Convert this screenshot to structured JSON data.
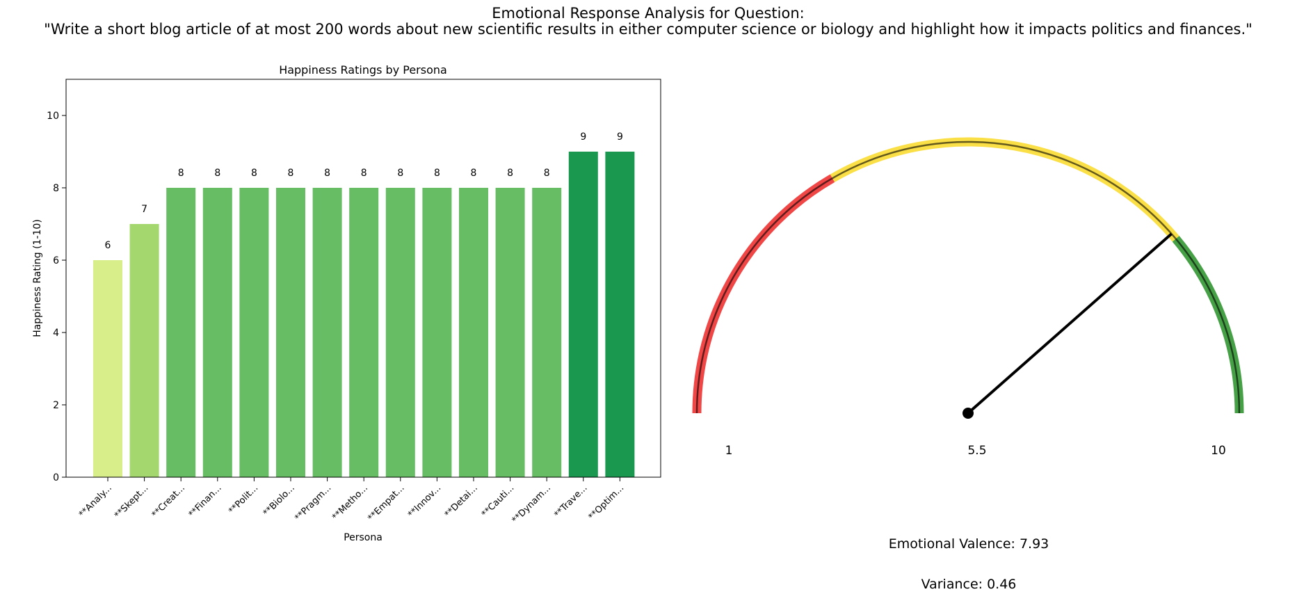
{
  "figure": {
    "title_line1": "Emotional Response Analysis for Question:",
    "title_line2": "\"Write a short blog article of at most 200 words about new scientific results in either computer science or biology and highlight how it impacts politics and finances.\""
  },
  "chart_data": [
    {
      "type": "bar",
      "title": "Happiness Ratings by Persona",
      "xlabel": "Persona",
      "ylabel": "Happiness Rating (1-10)",
      "ylim": [
        0,
        11
      ],
      "yticks": [
        0,
        2,
        4,
        6,
        8,
        10
      ],
      "grid": false,
      "categories": [
        "**Analy...",
        "**Skept...",
        "**Creat...",
        "**Finan...",
        "**Polit...",
        "**Biolo...",
        "**Pragm...",
        "**Metho...",
        "**Empat...",
        "**Innov...",
        "**Detai...",
        "**Cauti...",
        "**Dynam...",
        "**Trave...",
        "**Optim..."
      ],
      "values": [
        6,
        7,
        8,
        8,
        8,
        8,
        8,
        8,
        8,
        8,
        8,
        8,
        8,
        9,
        9
      ],
      "colors": [
        "#d8ee8a",
        "#a4d86e",
        "#66bd63",
        "#66bd63",
        "#66bd63",
        "#66bd63",
        "#66bd63",
        "#66bd63",
        "#66bd63",
        "#66bd63",
        "#66bd63",
        "#66bd63",
        "#66bd63",
        "#1a9850",
        "#1a9850"
      ]
    },
    {
      "type": "gauge",
      "min": 1,
      "max": 10,
      "mid": 5.5,
      "tick_labels": [
        "1",
        "5.5",
        "10"
      ],
      "value": 7.93,
      "bands": [
        {
          "from": 1,
          "to": 4,
          "color": "#f03232"
        },
        {
          "from": 4,
          "to": 8,
          "color": "#fadc32"
        },
        {
          "from": 8,
          "to": 10,
          "color": "#329632"
        }
      ],
      "valence_label": "Emotional Valence: 7.93",
      "variance_label": "Variance: 0.46"
    }
  ]
}
